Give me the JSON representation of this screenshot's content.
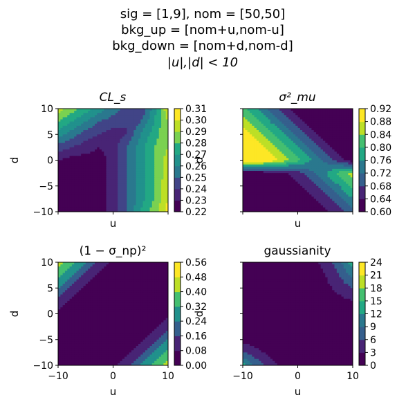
{
  "suptitle": [
    "sig = [1,9], nom = [50,50]",
    "bkg_up = [nom+u,nom-u]",
    "bkg_down = [nom+d,nom-d]",
    "|u|,|d| < 10"
  ],
  "colormap": [
    "#440154",
    "#482475",
    "#414487",
    "#355f8d",
    "#2a788e",
    "#21918c",
    "#22a884",
    "#44bf70",
    "#7ad151",
    "#bddf26",
    "#fde725"
  ],
  "chart_data": [
    {
      "type": "heatmap",
      "title": "CL_s",
      "xlabel": "u",
      "ylabel": "d",
      "xlim": [
        -10,
        10
      ],
      "ylim": [
        -10,
        10
      ],
      "xticks": [
        -10,
        0,
        10
      ],
      "yticks": [
        10,
        5,
        0,
        -5,
        -10
      ],
      "show_xticklabels": false,
      "show_yticklabels": true,
      "levels": [
        0.22,
        0.23,
        0.24,
        0.25,
        0.26,
        0.27,
        0.28,
        0.29,
        0.3,
        0.31
      ],
      "colorbar_ticks": [
        "0.31",
        "0.30",
        "0.29",
        "0.28",
        "0.27",
        "0.26",
        "0.25",
        "0.24",
        "0.23",
        "0.22"
      ],
      "grid": [
        [
          0.295,
          0.285,
          0.275,
          0.265,
          0.255,
          0.245,
          0.24,
          0.265,
          0.3
        ],
        [
          0.28,
          0.27,
          0.26,
          0.25,
          0.245,
          0.24,
          0.25,
          0.27,
          0.29
        ],
        [
          0.265,
          0.255,
          0.245,
          0.24,
          0.235,
          0.24,
          0.26,
          0.275,
          0.29
        ],
        [
          0.245,
          0.24,
          0.235,
          0.23,
          0.235,
          0.25,
          0.265,
          0.28,
          0.29
        ],
        [
          0.23,
          0.225,
          0.225,
          0.225,
          0.235,
          0.25,
          0.265,
          0.28,
          0.295
        ],
        [
          0.225,
          0.22,
          0.22,
          0.225,
          0.235,
          0.25,
          0.265,
          0.28,
          0.295
        ],
        [
          0.22,
          0.22,
          0.22,
          0.225,
          0.235,
          0.25,
          0.265,
          0.28,
          0.3
        ],
        [
          0.22,
          0.22,
          0.22,
          0.225,
          0.235,
          0.25,
          0.265,
          0.28,
          0.3
        ],
        [
          0.22,
          0.22,
          0.22,
          0.225,
          0.235,
          0.25,
          0.27,
          0.285,
          0.305
        ]
      ]
    },
    {
      "type": "heatmap",
      "title": "σ²_mu",
      "xlabel": "u",
      "ylabel": "d",
      "xlim": [
        -10,
        10
      ],
      "ylim": [
        -10,
        10
      ],
      "xticks": [
        -10,
        0,
        10
      ],
      "yticks": [
        10,
        5,
        0,
        -5,
        -10
      ],
      "show_xticklabels": false,
      "show_yticklabels": false,
      "levels": [
        0.6,
        0.64,
        0.68,
        0.72,
        0.76,
        0.8,
        0.84,
        0.88,
        0.92
      ],
      "colorbar_ticks": [
        "0.92",
        "0.88",
        "0.84",
        "0.80",
        "0.76",
        "0.72",
        "0.68",
        "0.64",
        "0.60"
      ],
      "grid": [
        [
          0.81,
          0.76,
          0.71,
          0.66,
          0.61,
          0.6,
          0.6,
          0.6,
          0.6
        ],
        [
          0.86,
          0.81,
          0.76,
          0.71,
          0.66,
          0.61,
          0.6,
          0.6,
          0.6
        ],
        [
          0.91,
          0.86,
          0.81,
          0.76,
          0.71,
          0.66,
          0.61,
          0.6,
          0.6
        ],
        [
          0.92,
          0.91,
          0.86,
          0.81,
          0.76,
          0.71,
          0.66,
          0.61,
          0.6
        ],
        [
          0.92,
          0.92,
          0.91,
          0.86,
          0.81,
          0.76,
          0.71,
          0.66,
          0.61
        ],
        [
          0.6,
          0.61,
          0.62,
          0.63,
          0.66,
          0.71,
          0.76,
          0.81,
          0.86
        ],
        [
          0.6,
          0.6,
          0.61,
          0.62,
          0.63,
          0.66,
          0.71,
          0.76,
          0.81
        ],
        [
          0.6,
          0.6,
          0.6,
          0.61,
          0.62,
          0.63,
          0.66,
          0.71,
          0.76
        ],
        [
          0.6,
          0.6,
          0.6,
          0.6,
          0.61,
          0.62,
          0.63,
          0.66,
          0.71
        ]
      ]
    },
    {
      "type": "heatmap",
      "title": "(1 − σ_np)²",
      "xlabel": "u",
      "ylabel": "d",
      "xlim": [
        -10,
        10
      ],
      "ylim": [
        -10,
        10
      ],
      "xticks": [
        -10,
        0,
        10
      ],
      "yticks": [
        10,
        5,
        0,
        -5,
        -10
      ],
      "show_xticklabels": true,
      "show_yticklabels": true,
      "levels": [
        0.0,
        0.08,
        0.16,
        0.24,
        0.32,
        0.4,
        0.48,
        0.56
      ],
      "colorbar_ticks": [
        "0.56",
        "0.48",
        "0.40",
        "0.32",
        "0.24",
        "0.16",
        "0.08",
        "0.00"
      ],
      "grid": [
        [
          0.44,
          0.34,
          0.24,
          0.14,
          0.05,
          0.0,
          0.0,
          0.0,
          0.0
        ],
        [
          0.34,
          0.24,
          0.14,
          0.05,
          0.0,
          0.0,
          0.0,
          0.0,
          0.0
        ],
        [
          0.24,
          0.14,
          0.05,
          0.0,
          0.0,
          0.0,
          0.0,
          0.0,
          0.0
        ],
        [
          0.14,
          0.05,
          0.0,
          0.0,
          0.0,
          0.0,
          0.0,
          0.0,
          0.0
        ],
        [
          0.05,
          0.0,
          0.0,
          0.0,
          0.0,
          0.0,
          0.0,
          0.0,
          0.05
        ],
        [
          0.0,
          0.0,
          0.0,
          0.0,
          0.0,
          0.0,
          0.0,
          0.05,
          0.14
        ],
        [
          0.0,
          0.0,
          0.0,
          0.0,
          0.0,
          0.0,
          0.05,
          0.14,
          0.24
        ],
        [
          0.0,
          0.0,
          0.0,
          0.0,
          0.0,
          0.05,
          0.14,
          0.24,
          0.34
        ],
        [
          0.0,
          0.0,
          0.0,
          0.0,
          0.05,
          0.14,
          0.24,
          0.34,
          0.44
        ]
      ]
    },
    {
      "type": "heatmap",
      "title": "gaussianity",
      "xlabel": "u",
      "ylabel": "d",
      "xlim": [
        -10,
        10
      ],
      "ylim": [
        -10,
        10
      ],
      "xticks": [
        -10,
        0,
        10
      ],
      "yticks": [
        10,
        5,
        0,
        -5,
        -10
      ],
      "show_xticklabels": true,
      "show_yticklabels": false,
      "levels": [
        0,
        3,
        6,
        9,
        12,
        15,
        18,
        21,
        24
      ],
      "colorbar_ticks": [
        "24",
        "21",
        "18",
        "15",
        "12",
        "9",
        "6",
        "3",
        "0"
      ],
      "grid": [
        [
          0.5,
          0.5,
          0.5,
          0.5,
          1,
          2,
          4,
          8,
          14
        ],
        [
          0.5,
          0.5,
          0.5,
          0.5,
          0.5,
          1.5,
          3,
          6,
          10
        ],
        [
          0.5,
          0.5,
          0.5,
          0.5,
          0.5,
          1,
          2,
          4,
          6
        ],
        [
          0.5,
          0.5,
          0.5,
          0.5,
          0.5,
          0.5,
          1,
          2,
          3
        ],
        [
          0.5,
          0.5,
          0.5,
          0.5,
          0.5,
          0.5,
          0.5,
          0.5,
          1
        ],
        [
          0.5,
          0.5,
          0.5,
          0.5,
          0.5,
          0.5,
          0.5,
          0.5,
          0.5
        ],
        [
          2,
          1,
          0.5,
          0.5,
          0.5,
          0.5,
          0.5,
          0.5,
          0.5
        ],
        [
          6,
          4,
          2,
          1,
          0.5,
          0.5,
          0.5,
          0.5,
          0.5
        ],
        [
          13,
          8,
          4,
          2,
          1,
          0.5,
          0.5,
          0.5,
          0.5
        ]
      ]
    }
  ]
}
